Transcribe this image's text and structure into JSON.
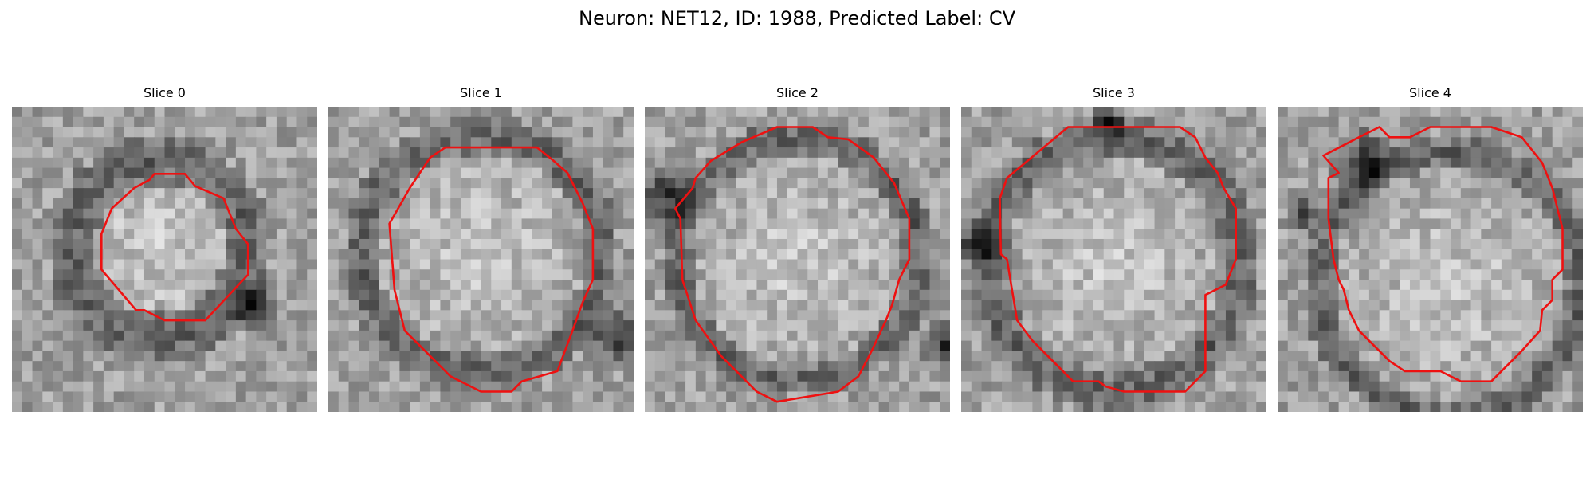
{
  "figure": {
    "title": "Neuron: NET12, ID: 1988, Predicted Label: CV"
  },
  "panels": [
    {
      "title": "Slice 0"
    },
    {
      "title": "Slice 1"
    },
    {
      "title": "Slice 2"
    },
    {
      "title": "Slice 3"
    },
    {
      "title": "Slice 4"
    }
  ],
  "colors": {
    "contour": "#ee1111",
    "background": "#ffffff"
  }
}
